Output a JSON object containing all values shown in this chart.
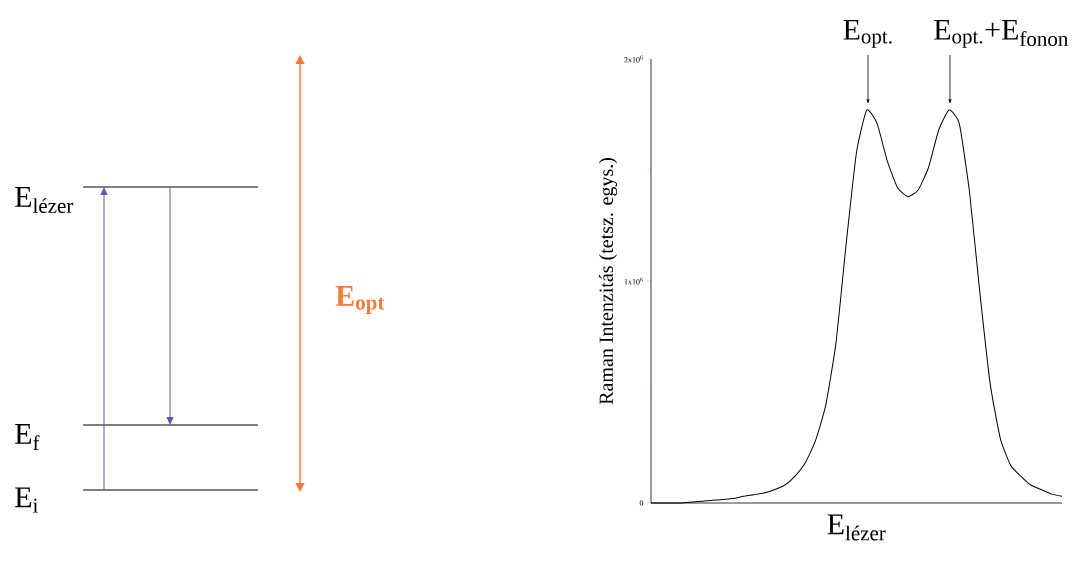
{
  "chart_data": [
    {
      "type": "other",
      "annotations": [
        "E$_{lézer}$",
        "E$_{f}$",
        "E$_{i}$",
        "E$_{opt}$"
      ],
      "color": "#f47b3b"
    },
    {
      "type": "line",
      "ylabel": "Raman Intenzitás (tetsz. egys.)",
      "xlabel": "E$_{lézer}$",
      "annotations": [
        "E$_{opt.}$",
        "E$_{opt.}$+E$_{fonon}$"
      ],
      "categories": [
        null,
        null,
        null,
        null,
        null,
        null,
        null,
        null,
        null,
        null,
        null,
        null,
        null,
        null,
        null,
        null,
        null,
        null,
        null,
        null,
        null,
        null,
        null,
        null,
        null,
        null,
        null,
        null,
        null,
        null,
        null,
        null,
        null,
        null,
        null,
        null,
        null,
        null,
        null,
        null,
        null
      ],
      "series": [
        {
          "color": "#000000",
          "values": [
            0,
            0,
            0,
            0,
            5000,
            8000,
            12000,
            16000,
            20000,
            30000,
            37000,
            45000,
            60000,
            80000,
            120000,
            180000,
            280000,
            440000,
            720000,
            1170000,
            1580000,
            1770000,
            1710000,
            1540000,
            1420000,
            1380000,
            1410000,
            1510000,
            1680000,
            1770000,
            1710000,
            1400000,
            950000,
            540000,
            290000,
            170000,
            120000,
            80000,
            60000,
            40000,
            30000
          ]
        }
      ],
      "ylim": [
        0,
        2000000
      ],
      "yticks": [
        0,
        {
          "value": 500000,
          "label": null
        },
        {
          "value": 1000000,
          "label": "1x10$^{6}$"
        },
        {
          "value": 1500000,
          "label": null
        },
        {
          "value": 2000000,
          "label": "2x10$^{6}$"
        }
      ],
      "tick_labels": "y",
      "grid": false,
      "marker": "none",
      "line_style": "solid"
    }
  ]
}
